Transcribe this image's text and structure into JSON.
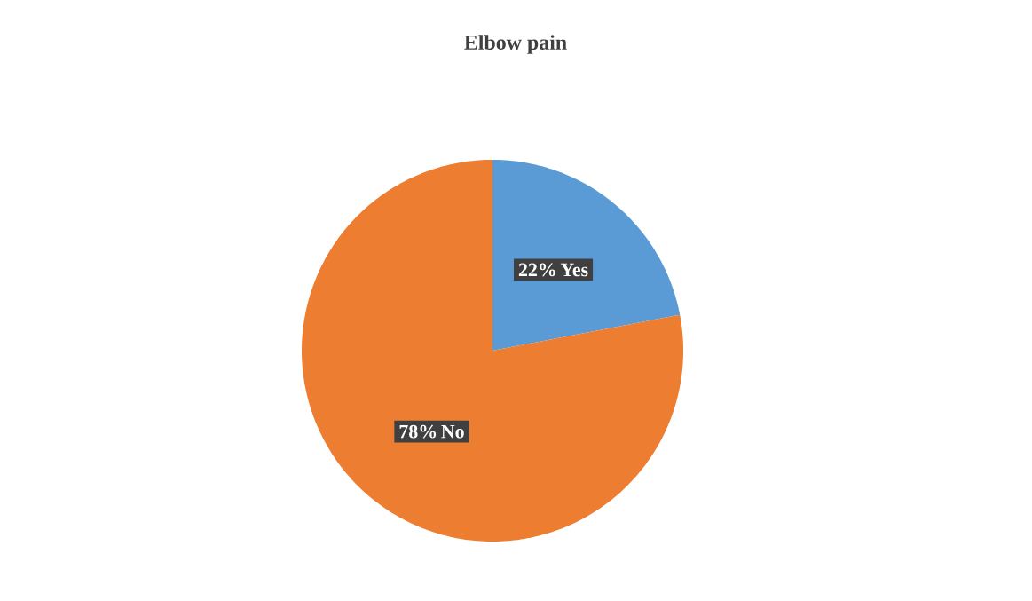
{
  "chart_data": {
    "type": "pie",
    "title": "Elbow pain",
    "categories": [
      "Yes",
      "No"
    ],
    "values": [
      22,
      78
    ],
    "colors": [
      "#5b9bd5",
      "#ed7d31"
    ],
    "value_labels": [
      "22%",
      "78%"
    ]
  }
}
